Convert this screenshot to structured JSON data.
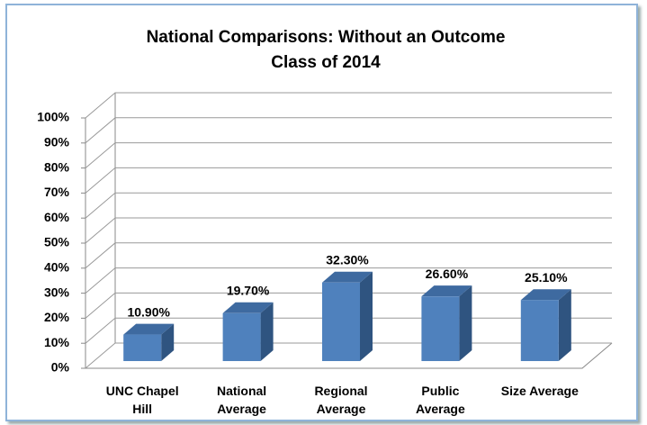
{
  "chart_data": {
    "type": "bar3d",
    "title": "National Comparisons: Without an Outcome",
    "subtitle": "Class of 2014",
    "categories": [
      "UNC Chapel Hill",
      "National Average",
      "Regional Average",
      "Public Average",
      "Size Average"
    ],
    "values": [
      10.9,
      19.7,
      32.3,
      26.6,
      25.1
    ],
    "value_labels": [
      "10.90%",
      "19.70%",
      "32.30%",
      "26.60%",
      "25.10%"
    ],
    "color": "#4f81bd",
    "ylim": [
      0,
      100
    ],
    "yticks": [
      {
        "value": 0,
        "label": "0%"
      },
      {
        "value": 10,
        "label": "10%"
      },
      {
        "value": 20,
        "label": "20%"
      },
      {
        "value": 30,
        "label": "30%"
      },
      {
        "value": 40,
        "label": "40%"
      },
      {
        "value": 50,
        "label": "50%"
      },
      {
        "value": 60,
        "label": "60%"
      },
      {
        "value": 70,
        "label": "70%"
      },
      {
        "value": 80,
        "label": "80%"
      },
      {
        "value": 90,
        "label": "90%"
      },
      {
        "value": 100,
        "label": "100%"
      }
    ],
    "grid": true
  }
}
